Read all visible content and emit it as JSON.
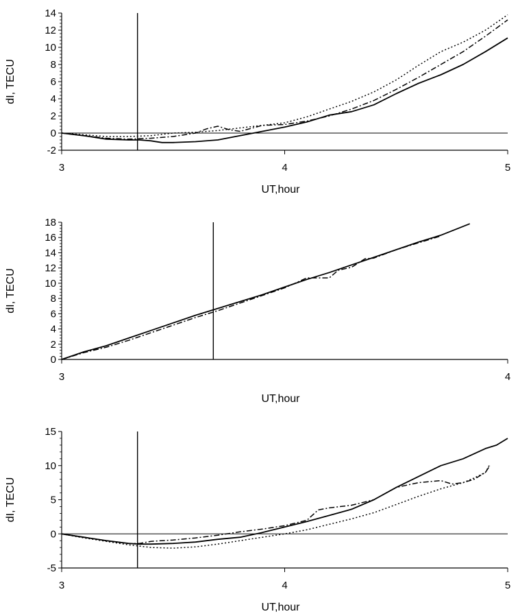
{
  "chart_data": [
    {
      "type": "line",
      "xlabel": "UT,hour",
      "ylabel": "dI, TECU",
      "xlim": [
        3,
        5
      ],
      "ylim": [
        -2,
        14
      ],
      "xticks": [
        3,
        4,
        5
      ],
      "yticks": [
        -2,
        0,
        2,
        4,
        6,
        8,
        10,
        12,
        14
      ],
      "ytick_labels": [
        "-2",
        "0",
        "2",
        "4",
        "6",
        "8",
        "10",
        "12",
        "14"
      ],
      "xtick_labels": [
        "3",
        "4",
        "5"
      ],
      "vline_x": 3.34,
      "hline_y": 0,
      "series": [
        {
          "name": "solid",
          "style": "solid",
          "x": [
            3.0,
            3.1,
            3.2,
            3.3,
            3.35,
            3.4,
            3.45,
            3.5,
            3.6,
            3.7,
            3.8,
            3.9,
            4.0,
            4.1,
            4.2,
            4.3,
            4.4,
            4.5,
            4.6,
            4.7,
            4.8,
            4.9,
            5.0
          ],
          "y": [
            0.0,
            -0.3,
            -0.7,
            -0.8,
            -0.8,
            -0.9,
            -1.1,
            -1.1,
            -1.0,
            -0.8,
            -0.3,
            0.2,
            0.7,
            1.3,
            2.1,
            2.5,
            3.3,
            4.6,
            5.8,
            6.8,
            8.0,
            9.5,
            11.1
          ]
        },
        {
          "name": "dash-dot",
          "style": "dashdot",
          "x": [
            3.0,
            3.1,
            3.2,
            3.3,
            3.4,
            3.5,
            3.6,
            3.65,
            3.7,
            3.75,
            3.8,
            3.9,
            4.0,
            4.1,
            4.2,
            4.3,
            4.4,
            4.5,
            4.6,
            4.7,
            4.8,
            4.9,
            5.0
          ],
          "y": [
            0.0,
            -0.3,
            -0.6,
            -0.7,
            -0.6,
            -0.4,
            0.0,
            0.5,
            0.8,
            0.4,
            0.2,
            0.9,
            1.0,
            1.4,
            2.0,
            2.8,
            3.8,
            5.1,
            6.5,
            8.0,
            9.5,
            11.3,
            13.2
          ]
        },
        {
          "name": "dotted",
          "style": "dotted",
          "x": [
            3.0,
            3.1,
            3.2,
            3.3,
            3.4,
            3.5,
            3.6,
            3.7,
            3.8,
            3.9,
            4.0,
            4.1,
            4.2,
            4.3,
            4.4,
            4.5,
            4.6,
            4.7,
            4.8,
            4.9,
            5.0
          ],
          "y": [
            0.0,
            -0.2,
            -0.4,
            -0.4,
            -0.3,
            0.0,
            0.1,
            0.3,
            0.6,
            0.9,
            1.2,
            1.9,
            2.8,
            3.7,
            4.8,
            6.2,
            7.9,
            9.5,
            10.6,
            12.0,
            13.8
          ]
        }
      ]
    },
    {
      "type": "line",
      "xlabel": "UT,hour",
      "ylabel": "dI, TECU",
      "xlim": [
        3,
        4
      ],
      "ylim": [
        0,
        18
      ],
      "xticks": [
        3,
        4
      ],
      "yticks": [
        0,
        2,
        4,
        6,
        8,
        10,
        12,
        14,
        16,
        18
      ],
      "ytick_labels": [
        "0",
        "2",
        "4",
        "6",
        "8",
        "10",
        "12",
        "14",
        "16",
        "18"
      ],
      "xtick_labels": [
        "3",
        "4"
      ],
      "vline_x": 3.34,
      "hline_y": null,
      "series": [
        {
          "name": "solid",
          "style": "solid",
          "x": [
            3.0,
            3.05,
            3.1,
            3.15,
            3.2,
            3.25,
            3.3,
            3.35,
            3.4,
            3.45,
            3.5,
            3.55,
            3.6,
            3.65,
            3.7,
            3.75,
            3.8,
            3.85,
            3.915
          ],
          "y": [
            0.0,
            1.0,
            1.8,
            2.8,
            3.8,
            4.8,
            5.8,
            6.7,
            7.6,
            8.5,
            9.5,
            10.5,
            11.4,
            12.4,
            13.4,
            14.4,
            15.4,
            16.3,
            17.8
          ]
        },
        {
          "name": "dash-dot",
          "style": "dashdot",
          "x": [
            3.0,
            3.05,
            3.1,
            3.15,
            3.2,
            3.25,
            3.3,
            3.35,
            3.4,
            3.45,
            3.5,
            3.55,
            3.6,
            3.62,
            3.65,
            3.68,
            3.7,
            3.75,
            3.8,
            3.85
          ],
          "y": [
            0.0,
            0.9,
            1.6,
            2.5,
            3.5,
            4.5,
            5.5,
            6.4,
            7.4,
            8.4,
            9.4,
            10.7,
            10.7,
            11.7,
            12.1,
            13.2,
            13.3,
            14.4,
            15.3,
            16.2
          ]
        }
      ]
    },
    {
      "type": "line",
      "xlabel": "UT,hour",
      "ylabel": "dI, TECU",
      "xlim": [
        3,
        5
      ],
      "ylim": [
        -5,
        15
      ],
      "xticks": [
        3,
        4,
        5
      ],
      "yticks": [
        -5,
        0,
        5,
        10,
        15
      ],
      "ytick_labels": [
        "-5",
        "0",
        "5",
        "10",
        "15"
      ],
      "xtick_labels": [
        "3",
        "4",
        "5"
      ],
      "vline_x": 3.34,
      "hline_y": 0,
      "series": [
        {
          "name": "solid",
          "style": "solid",
          "x": [
            3.0,
            3.1,
            3.2,
            3.3,
            3.35,
            3.4,
            3.5,
            3.6,
            3.7,
            3.8,
            3.9,
            4.0,
            4.1,
            4.2,
            4.3,
            4.4,
            4.5,
            4.6,
            4.7,
            4.8,
            4.9,
            4.95,
            5.0
          ],
          "y": [
            0.0,
            -0.5,
            -1.0,
            -1.4,
            -1.5,
            -1.5,
            -1.4,
            -1.2,
            -0.8,
            -0.5,
            0.2,
            1.0,
            1.8,
            2.7,
            3.6,
            5.0,
            6.8,
            8.4,
            10.0,
            11.0,
            12.5,
            13.0,
            14.0
          ]
        },
        {
          "name": "dash-dot",
          "style": "dashdot",
          "x": [
            3.0,
            3.1,
            3.2,
            3.3,
            3.35,
            3.4,
            3.5,
            3.6,
            3.7,
            3.8,
            3.9,
            4.0,
            4.1,
            4.15,
            4.2,
            4.3,
            4.4,
            4.5,
            4.6,
            4.7,
            4.75,
            4.8,
            4.85,
            4.9,
            4.92
          ],
          "y": [
            0.0,
            -0.5,
            -1.0,
            -1.4,
            -1.4,
            -1.1,
            -0.9,
            -0.6,
            -0.2,
            0.3,
            0.7,
            1.2,
            2.0,
            3.5,
            3.8,
            4.2,
            5.0,
            6.8,
            7.5,
            7.8,
            7.3,
            7.5,
            8.0,
            9.0,
            10.0
          ]
        },
        {
          "name": "dotted",
          "style": "dotted",
          "x": [
            3.0,
            3.1,
            3.2,
            3.3,
            3.4,
            3.5,
            3.6,
            3.7,
            3.8,
            3.9,
            4.0,
            4.1,
            4.2,
            4.3,
            4.4,
            4.5,
            4.6,
            4.7,
            4.8,
            4.85,
            4.9,
            4.92
          ],
          "y": [
            0.0,
            -0.6,
            -1.1,
            -1.6,
            -2.0,
            -2.1,
            -1.9,
            -1.5,
            -1.0,
            -0.5,
            0.0,
            0.6,
            1.4,
            2.2,
            3.1,
            4.3,
            5.5,
            6.6,
            7.5,
            8.2,
            9.0,
            10.2
          ]
        }
      ]
    }
  ]
}
